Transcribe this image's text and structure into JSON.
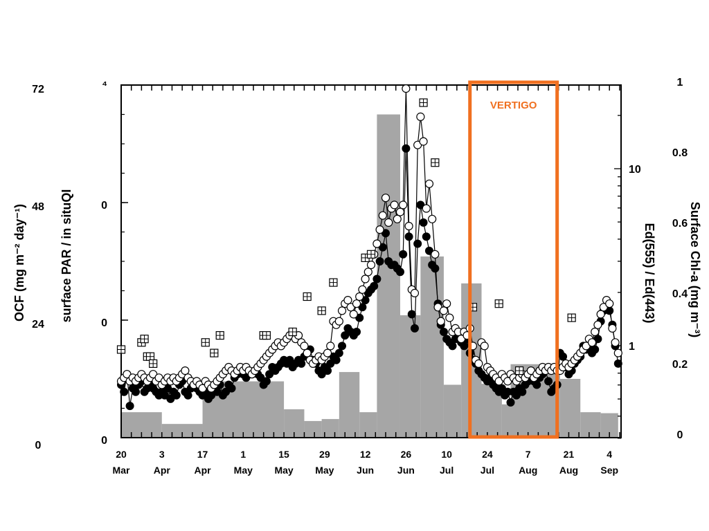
{
  "chart_data": {
    "type": "line",
    "colors": {
      "bars": "#a6a6a6",
      "box": "#f07020",
      "text": "#000000",
      "filled": "#000000",
      "open": "#ffffff"
    },
    "x_ticks": [
      {
        "day": "20",
        "month": "Mar"
      },
      {
        "day": "3",
        "month": "Apr"
      },
      {
        "day": "17",
        "month": "Apr"
      },
      {
        "day": "1",
        "month": "May"
      },
      {
        "day": "15",
        "month": "May"
      },
      {
        "day": "29",
        "month": "May"
      },
      {
        "day": "12",
        "month": "Jun"
      },
      {
        "day": "26",
        "month": "Jun"
      },
      {
        "day": "10",
        "month": "Jul"
      },
      {
        "day": "24",
        "month": "Jul"
      },
      {
        "day": "7",
        "month": "Aug"
      },
      {
        "day": "21",
        "month": "Aug"
      },
      {
        "day": "4",
        "month": "Sep"
      }
    ],
    "x_start_label": "20 Mar",
    "x_days_range": [
      0,
      172
    ],
    "left_axis_ocf": {
      "label": "OCF (mg m⁻² day⁻¹)",
      "ticks": [
        "72",
        "48",
        "24",
        "0"
      ],
      "range": [
        0,
        72
      ]
    },
    "left_axis_par": {
      "label": "surface PAR / in situQI",
      "ticks": [
        "⁴",
        "0",
        "0",
        "0"
      ]
    },
    "right_axis_ed": {
      "label": "Ed(555) / Ed(443)",
      "ticks": [
        "10",
        "1"
      ]
    },
    "right_axis_chl": {
      "label": "Surface Chl-a (mg m⁻³)",
      "ticks": [
        "1",
        "0.8",
        "0.6",
        "0.4",
        "0.2",
        "0"
      ],
      "range": [
        0,
        1
      ]
    },
    "annotation": {
      "text": "VERTIGO",
      "x_range_days": [
        120,
        150
      ]
    },
    "ocf_bars": [
      {
        "x0": 0,
        "x1": 14,
        "value": 5.2
      },
      {
        "x0": 14,
        "x1": 28,
        "value": 2.8
      },
      {
        "x0": 28,
        "x1": 56,
        "value": 11.5
      },
      {
        "x0": 56,
        "x1": 63,
        "value": 5.8
      },
      {
        "x0": 63,
        "x1": 69,
        "value": 3.4
      },
      {
        "x0": 69,
        "x1": 75,
        "value": 3.8
      },
      {
        "x0": 75,
        "x1": 82,
        "value": 13.4
      },
      {
        "x0": 82,
        "x1": 88,
        "value": 5.2
      },
      {
        "x0": 88,
        "x1": 96,
        "value": 66.0
      },
      {
        "x0": 96,
        "x1": 103,
        "value": 25.0
      },
      {
        "x0": 103,
        "x1": 111,
        "value": 37.0
      },
      {
        "x0": 111,
        "x1": 117,
        "value": 10.8
      },
      {
        "x0": 117,
        "x1": 124,
        "value": 31.5
      },
      {
        "x0": 124,
        "x1": 131,
        "value": 11.0
      },
      {
        "x0": 131,
        "x1": 134,
        "value": 6.8
      },
      {
        "x0": 134,
        "x1": 151,
        "value": 15.0
      },
      {
        "x0": 151,
        "x1": 158,
        "value": 12.0
      },
      {
        "x0": 158,
        "x1": 165,
        "value": 5.2
      },
      {
        "x0": 165,
        "x1": 171,
        "value": 5.0
      }
    ],
    "chl_open": [
      [
        0,
        0.16
      ],
      [
        1,
        0.17
      ],
      [
        2,
        0.18
      ],
      [
        3,
        0.16
      ],
      [
        4,
        0.17
      ],
      [
        5,
        0.16
      ],
      [
        6,
        0.17
      ],
      [
        7,
        0.18
      ],
      [
        8,
        0.17
      ],
      [
        9,
        0.16
      ],
      [
        10,
        0.17
      ],
      [
        11,
        0.18
      ],
      [
        12,
        0.16
      ],
      [
        13,
        0.17
      ],
      [
        14,
        0.15
      ],
      [
        15,
        0.16
      ],
      [
        16,
        0.17
      ],
      [
        17,
        0.16
      ],
      [
        18,
        0.17
      ],
      [
        19,
        0.16
      ],
      [
        20,
        0.17
      ],
      [
        21,
        0.18
      ],
      [
        22,
        0.19
      ],
      [
        23,
        0.17
      ],
      [
        24,
        0.16
      ],
      [
        25,
        0.15
      ],
      [
        26,
        0.16
      ],
      [
        27,
        0.15
      ],
      [
        28,
        0.14
      ],
      [
        29,
        0.16
      ],
      [
        30,
        0.15
      ],
      [
        31,
        0.14
      ],
      [
        32,
        0.15
      ],
      [
        33,
        0.16
      ],
      [
        34,
        0.17
      ],
      [
        35,
        0.18
      ],
      [
        36,
        0.19
      ],
      [
        37,
        0.2
      ],
      [
        38,
        0.19
      ],
      [
        39,
        0.18
      ],
      [
        40,
        0.19
      ],
      [
        41,
        0.2
      ],
      [
        42,
        0.19
      ],
      [
        43,
        0.2
      ],
      [
        44,
        0.19
      ],
      [
        45,
        0.18
      ],
      [
        46,
        0.19
      ],
      [
        47,
        0.2
      ],
      [
        48,
        0.21
      ],
      [
        49,
        0.22
      ],
      [
        50,
        0.23
      ],
      [
        51,
        0.24
      ],
      [
        52,
        0.25
      ],
      [
        53,
        0.26
      ],
      [
        54,
        0.27
      ],
      [
        55,
        0.26
      ],
      [
        56,
        0.27
      ],
      [
        57,
        0.28
      ],
      [
        58,
        0.29
      ],
      [
        59,
        0.3
      ],
      [
        60,
        0.28
      ],
      [
        61,
        0.29
      ],
      [
        62,
        0.27
      ],
      [
        63,
        0.26
      ],
      [
        64,
        0.24
      ],
      [
        65,
        0.22
      ],
      [
        66,
        0.21
      ],
      [
        67,
        0.22
      ],
      [
        68,
        0.23
      ],
      [
        69,
        0.22
      ],
      [
        70,
        0.23
      ],
      [
        71,
        0.24
      ],
      [
        72,
        0.26
      ],
      [
        73,
        0.33
      ],
      [
        74,
        0.32
      ],
      [
        75,
        0.33
      ],
      [
        76,
        0.36
      ],
      [
        77,
        0.38
      ],
      [
        78,
        0.39
      ],
      [
        79,
        0.37
      ],
      [
        80,
        0.35
      ],
      [
        81,
        0.38
      ],
      [
        82,
        0.4
      ],
      [
        83,
        0.42
      ],
      [
        84,
        0.45
      ],
      [
        85,
        0.47
      ],
      [
        86,
        0.49
      ],
      [
        87,
        0.52
      ],
      [
        88,
        0.55
      ],
      [
        89,
        0.59
      ],
      [
        90,
        0.63
      ],
      [
        91,
        0.68
      ],
      [
        92,
        0.61
      ],
      [
        93,
        0.65
      ],
      [
        94,
        0.66
      ],
      [
        95,
        0.62
      ],
      [
        96,
        0.64
      ],
      [
        97,
        0.66
      ],
      [
        98,
        0.99
      ],
      [
        99,
        0.6
      ],
      [
        100,
        0.42
      ],
      [
        101,
        0.41
      ],
      [
        102,
        0.83
      ],
      [
        103,
        0.91
      ],
      [
        104,
        0.84
      ],
      [
        105,
        0.65
      ],
      [
        106,
        0.72
      ],
      [
        107,
        0.62
      ],
      [
        108,
        0.52
      ],
      [
        109,
        0.37
      ],
      [
        110,
        0.33
      ],
      [
        111,
        0.36
      ],
      [
        112,
        0.38
      ],
      [
        113,
        0.34
      ],
      [
        114,
        0.3
      ],
      [
        115,
        0.31
      ],
      [
        116,
        0.3
      ],
      [
        117,
        0.28
      ],
      [
        118,
        0.3
      ],
      [
        119,
        0.29
      ],
      [
        120,
        0.31
      ],
      [
        121,
        0.26
      ],
      [
        122,
        0.22
      ],
      [
        123,
        0.21
      ],
      [
        124,
        0.27
      ],
      [
        125,
        0.26
      ],
      [
        126,
        0.2
      ],
      [
        127,
        0.19
      ],
      [
        128,
        0.18
      ],
      [
        129,
        0.17
      ],
      [
        130,
        0.16
      ],
      [
        131,
        0.18
      ],
      [
        132,
        0.17
      ],
      [
        133,
        0.16
      ],
      [
        134,
        0.18
      ],
      [
        135,
        0.17
      ],
      [
        136,
        0.16
      ],
      [
        137,
        0.17
      ],
      [
        138,
        0.18
      ],
      [
        139,
        0.17
      ],
      [
        140,
        0.18
      ],
      [
        141,
        0.19
      ],
      [
        142,
        0.17
      ],
      [
        143,
        0.18
      ],
      [
        144,
        0.19
      ],
      [
        145,
        0.2
      ],
      [
        146,
        0.19
      ],
      [
        147,
        0.2
      ],
      [
        148,
        0.19
      ],
      [
        149,
        0.2
      ],
      [
        150,
        0.19
      ],
      [
        151,
        0.19
      ],
      [
        152,
        0.2
      ],
      [
        153,
        0.21
      ],
      [
        154,
        0.2
      ],
      [
        155,
        0.21
      ],
      [
        156,
        0.22
      ],
      [
        157,
        0.23
      ],
      [
        158,
        0.24
      ],
      [
        159,
        0.25
      ],
      [
        160,
        0.26
      ],
      [
        161,
        0.28
      ],
      [
        162,
        0.27
      ],
      [
        163,
        0.3
      ],
      [
        164,
        0.32
      ],
      [
        165,
        0.35
      ],
      [
        166,
        0.37
      ],
      [
        167,
        0.39
      ],
      [
        168,
        0.38
      ],
      [
        169,
        0.31
      ],
      [
        170,
        0.27
      ],
      [
        171,
        0.24
      ]
    ],
    "chl_filled": [
      [
        0,
        0.15
      ],
      [
        1,
        0.13
      ],
      [
        2,
        0.18
      ],
      [
        3,
        0.09
      ],
      [
        4,
        0.14
      ],
      [
        5,
        0.13
      ],
      [
        6,
        0.15
      ],
      [
        7,
        0.16
      ],
      [
        8,
        0.13
      ],
      [
        9,
        0.14
      ],
      [
        10,
        0.15
      ],
      [
        11,
        0.14
      ],
      [
        12,
        0.13
      ],
      [
        13,
        0.12
      ],
      [
        14,
        0.13
      ],
      [
        15,
        0.12
      ],
      [
        16,
        0.14
      ],
      [
        17,
        0.11
      ],
      [
        18,
        0.13
      ],
      [
        19,
        0.12
      ],
      [
        20,
        0.15
      ],
      [
        21,
        0.16
      ],
      [
        22,
        0.13
      ],
      [
        23,
        0.12
      ],
      [
        24,
        0.14
      ],
      [
        25,
        0.15
      ],
      [
        26,
        0.14
      ],
      [
        27,
        0.13
      ],
      [
        28,
        0.12
      ],
      [
        29,
        0.13
      ],
      [
        30,
        0.11
      ],
      [
        31,
        0.12
      ],
      [
        32,
        0.14
      ],
      [
        33,
        0.13
      ],
      [
        34,
        0.15
      ],
      [
        35,
        0.12
      ],
      [
        36,
        0.13
      ],
      [
        37,
        0.15
      ],
      [
        38,
        0.14
      ],
      [
        39,
        0.17
      ],
      [
        40,
        0.18
      ],
      [
        41,
        0.19
      ],
      [
        42,
        0.18
      ],
      [
        43,
        0.17
      ],
      [
        44,
        0.19
      ],
      [
        45,
        0.18
      ],
      [
        46,
        0.19
      ],
      [
        47,
        0.18
      ],
      [
        48,
        0.17
      ],
      [
        49,
        0.15
      ],
      [
        50,
        0.16
      ],
      [
        51,
        0.18
      ],
      [
        52,
        0.2
      ],
      [
        53,
        0.19
      ],
      [
        54,
        0.2
      ],
      [
        55,
        0.21
      ],
      [
        56,
        0.22
      ],
      [
        57,
        0.21
      ],
      [
        58,
        0.22
      ],
      [
        59,
        0.2
      ],
      [
        60,
        0.21
      ],
      [
        61,
        0.22
      ],
      [
        62,
        0.21
      ],
      [
        63,
        0.23
      ],
      [
        64,
        0.24
      ],
      [
        65,
        0.25
      ],
      [
        66,
        0.22
      ],
      [
        67,
        0.21
      ],
      [
        68,
        0.19
      ],
      [
        69,
        0.18
      ],
      [
        70,
        0.2
      ],
      [
        71,
        0.19
      ],
      [
        72,
        0.21
      ],
      [
        73,
        0.23
      ],
      [
        74,
        0.22
      ],
      [
        75,
        0.24
      ],
      [
        76,
        0.26
      ],
      [
        77,
        0.29
      ],
      [
        78,
        0.31
      ],
      [
        79,
        0.3
      ],
      [
        80,
        0.29
      ],
      [
        81,
        0.3
      ],
      [
        82,
        0.34
      ],
      [
        83,
        0.37
      ],
      [
        84,
        0.39
      ],
      [
        85,
        0.41
      ],
      [
        86,
        0.42
      ],
      [
        87,
        0.43
      ],
      [
        88,
        0.45
      ],
      [
        89,
        0.5
      ],
      [
        90,
        0.54
      ],
      [
        91,
        0.58
      ],
      [
        92,
        0.5
      ],
      [
        93,
        0.49
      ],
      [
        94,
        0.49
      ],
      [
        95,
        0.48
      ],
      [
        96,
        0.47
      ],
      [
        97,
        0.52
      ],
      [
        98,
        0.82
      ],
      [
        99,
        0.57
      ],
      [
        100,
        0.35
      ],
      [
        101,
        0.31
      ],
      [
        102,
        0.55
      ],
      [
        103,
        0.66
      ],
      [
        104,
        0.61
      ],
      [
        105,
        0.57
      ],
      [
        106,
        0.53
      ],
      [
        107,
        0.49
      ],
      [
        108,
        0.48
      ],
      [
        109,
        0.38
      ],
      [
        110,
        0.32
      ],
      [
        111,
        0.3
      ],
      [
        112,
        0.28
      ],
      [
        113,
        0.27
      ],
      [
        114,
        0.26
      ],
      [
        115,
        0.28
      ],
      [
        116,
        0.29
      ],
      [
        117,
        0.27
      ],
      [
        118,
        0.26
      ],
      [
        119,
        0.28
      ],
      [
        120,
        0.24
      ],
      [
        121,
        0.22
      ],
      [
        122,
        0.21
      ],
      [
        123,
        0.19
      ],
      [
        124,
        0.18
      ],
      [
        125,
        0.17
      ],
      [
        126,
        0.16
      ],
      [
        127,
        0.17
      ],
      [
        128,
        0.15
      ],
      [
        129,
        0.14
      ],
      [
        130,
        0.13
      ],
      [
        131,
        0.14
      ],
      [
        132,
        0.12
      ],
      [
        133,
        0.13
      ],
      [
        134,
        0.1
      ],
      [
        135,
        0.13
      ],
      [
        136,
        0.12
      ],
      [
        137,
        0.14
      ],
      [
        138,
        0.13
      ],
      [
        139,
        0.15
      ],
      [
        140,
        0.16
      ],
      [
        141,
        0.17
      ],
      [
        142,
        0.16
      ],
      [
        143,
        0.15
      ],
      [
        144,
        0.17
      ],
      [
        145,
        0.18
      ],
      [
        146,
        0.19
      ],
      [
        147,
        0.16
      ],
      [
        148,
        0.13
      ],
      [
        149,
        0.14
      ],
      [
        150,
        0.15
      ],
      [
        151,
        0.24
      ],
      [
        152,
        0.23
      ],
      [
        153,
        0.2
      ],
      [
        154,
        0.18
      ],
      [
        155,
        0.19
      ],
      [
        156,
        0.21
      ],
      [
        157,
        0.22
      ],
      [
        158,
        0.23
      ],
      [
        159,
        0.26
      ],
      [
        160,
        0.25
      ],
      [
        161,
        0.26
      ],
      [
        162,
        0.24
      ],
      [
        163,
        0.25
      ],
      [
        164,
        0.28
      ],
      [
        165,
        0.33
      ],
      [
        166,
        0.36
      ],
      [
        167,
        0.37
      ],
      [
        168,
        0.36
      ],
      [
        169,
        0.32
      ],
      [
        170,
        0.26
      ],
      [
        171,
        0.21
      ]
    ],
    "chl_grid": [
      [
        0,
        0.25
      ],
      [
        7,
        0.27
      ],
      [
        8,
        0.28
      ],
      [
        9,
        0.23
      ],
      [
        10,
        0.23
      ],
      [
        11,
        0.21
      ],
      [
        29,
        0.27
      ],
      [
        32,
        0.24
      ],
      [
        34,
        0.29
      ],
      [
        49,
        0.29
      ],
      [
        50,
        0.29
      ],
      [
        59,
        0.3
      ],
      [
        64,
        0.4
      ],
      [
        69,
        0.36
      ],
      [
        73,
        0.44
      ],
      [
        84,
        0.51
      ],
      [
        86,
        0.52
      ],
      [
        104,
        0.95
      ],
      [
        108,
        0.78
      ],
      [
        121,
        0.37
      ],
      [
        130,
        0.38
      ],
      [
        137,
        0.19
      ],
      [
        155,
        0.34
      ]
    ]
  }
}
